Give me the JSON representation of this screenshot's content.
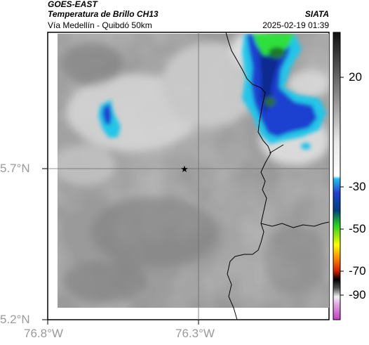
{
  "header": {
    "satellite": "GOES-EAST",
    "product": "Temperatura de Brillo CH13",
    "region": "Vía Medellín - Quibdó 50km",
    "organization": "SIATA",
    "timestamp": "2025-02-19 01:39"
  },
  "axes": {
    "lat_labels": [
      "5.7°N",
      "5.2°N"
    ],
    "lon_labels": [
      "76.8°W",
      "76.3°W"
    ]
  },
  "colorbar": {
    "ticks": [
      "20",
      "-30",
      "-50",
      "-70",
      "-90"
    ]
  },
  "colors": {
    "background_gray": "#9a9a9a",
    "cold_blue": "#1f3fd0",
    "cyan": "#22c6e8",
    "green": "#2ee03a",
    "border_line": "#000000"
  }
}
